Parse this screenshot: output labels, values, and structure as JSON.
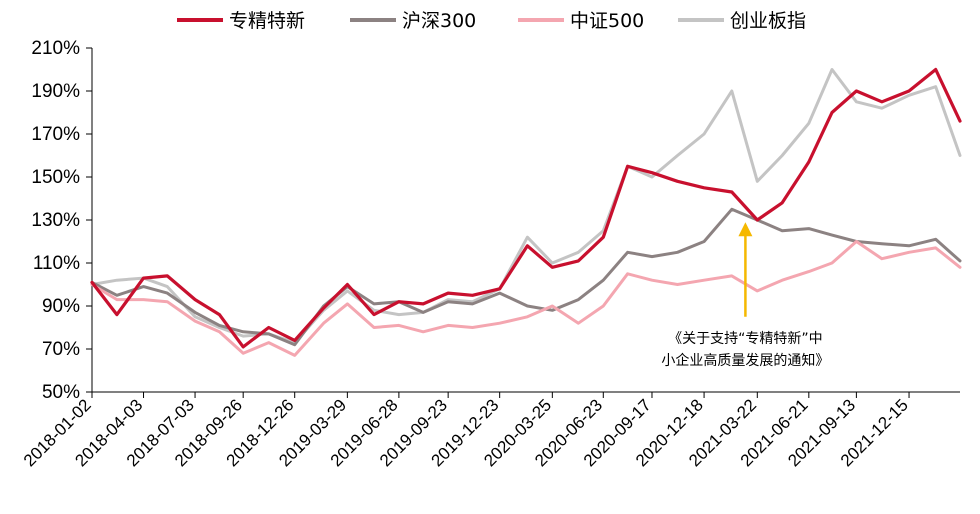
{
  "chart_data": {
    "type": "line",
    "title": "",
    "xlabel": "",
    "ylabel": "",
    "ylim": [
      50,
      210
    ],
    "y_ticks": [
      "50%",
      "70%",
      "90%",
      "110%",
      "130%",
      "150%",
      "170%",
      "190%",
      "210%"
    ],
    "x_ticks": [
      "2018-01-02",
      "2018-04-03",
      "2018-07-03",
      "2018-09-26",
      "2018-12-26",
      "2019-03-29",
      "2019-06-28",
      "2019-09-23",
      "2019-12-23",
      "2020-03-25",
      "2020-06-23",
      "2020-09-17",
      "2020-12-18",
      "2021-03-22",
      "2021-06-21",
      "2021-09-13",
      "2021-12-15"
    ],
    "legend_position": "top",
    "x": [
      "2018-01-02",
      "2018-02-15",
      "2018-04-03",
      "2018-05-15",
      "2018-07-03",
      "2018-08-15",
      "2018-09-26",
      "2018-11-10",
      "2018-12-26",
      "2019-02-15",
      "2019-03-29",
      "2019-05-15",
      "2019-06-28",
      "2019-08-10",
      "2019-09-23",
      "2019-11-05",
      "2019-12-23",
      "2020-02-10",
      "2020-03-25",
      "2020-05-10",
      "2020-06-23",
      "2020-08-05",
      "2020-09-17",
      "2020-11-01",
      "2020-12-18",
      "2021-02-05",
      "2021-03-22",
      "2021-05-05",
      "2021-06-21",
      "2021-08-01",
      "2021-09-13",
      "2021-10-28",
      "2021-12-15",
      "2022-01-31",
      "2022-03-15"
    ],
    "series": [
      {
        "name": "专精特新",
        "color": "#c8102e",
        "values": [
          101,
          86,
          103,
          104,
          93,
          86,
          71,
          80,
          74,
          89,
          100,
          86,
          92,
          91,
          96,
          95,
          98,
          118,
          108,
          111,
          122,
          155,
          152,
          148,
          145,
          143,
          130,
          138,
          157,
          180,
          190,
          185,
          190,
          200,
          176
        ]
      },
      {
        "name": "沪深300",
        "color": "#8c8282",
        "values": [
          101,
          95,
          99,
          96,
          87,
          81,
          78,
          77,
          72,
          90,
          99,
          91,
          92,
          87,
          92,
          91,
          96,
          90,
          88,
          93,
          102,
          115,
          113,
          115,
          120,
          135,
          130,
          125,
          126,
          123,
          120,
          119,
          118,
          121,
          111
        ]
      },
      {
        "name": "中证500",
        "color": "#f4a6b0",
        "values": [
          100,
          93,
          93,
          92,
          83,
          78,
          68,
          73,
          67,
          82,
          91,
          80,
          81,
          78,
          81,
          80,
          82,
          85,
          90,
          82,
          90,
          105,
          102,
          100,
          102,
          104,
          97,
          102,
          106,
          110,
          120,
          112,
          115,
          117,
          108
        ]
      },
      {
        "name": "创业板指",
        "color": "#c4c4c4",
        "values": [
          100,
          102,
          103,
          99,
          85,
          80,
          76,
          77,
          73,
          88,
          97,
          88,
          86,
          87,
          93,
          92,
          98,
          122,
          110,
          115,
          125,
          155,
          150,
          160,
          170,
          190,
          148,
          160,
          175,
          200,
          185,
          182,
          188,
          192,
          160
        ]
      }
    ],
    "annotation": {
      "text_lines": [
        "《关于支持“专精特新”中",
        "小企业高质量发展的通知》"
      ],
      "x": "2021-03-01",
      "y_from": 85,
      "y_to": 128,
      "color": "#f5b800"
    }
  }
}
